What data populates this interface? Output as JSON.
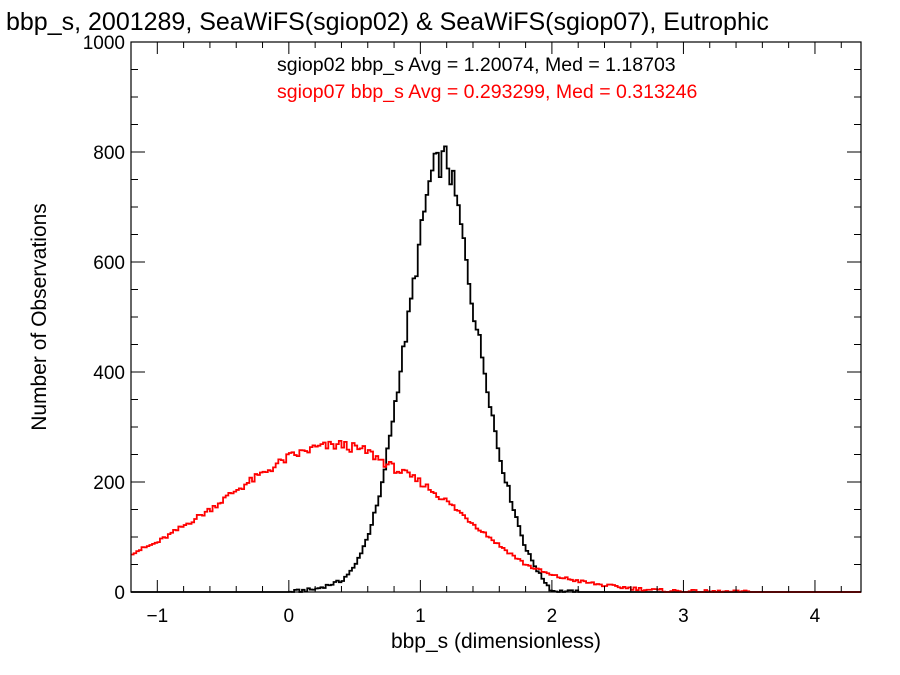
{
  "chart_data": {
    "type": "histogram",
    "title": "bbp_s, 2001289, SeaWiFS(sgiop02) & SeaWiFS(sgiop07), Eutrophic",
    "xlabel": "bbp_s (dimensionless)",
    "ylabel": "Number of Observations",
    "xlim": [
      -1.2,
      4.35
    ],
    "ylim": [
      0,
      1000
    ],
    "x_ticks": [
      "−1",
      "0",
      "1",
      "2",
      "3",
      "4"
    ],
    "y_ticks": [
      "0",
      "200",
      "400",
      "600",
      "800",
      "1000"
    ],
    "annotations": [
      {
        "text": "sgiop02 bbp_s Avg = 1.20074, Med = 1.18703",
        "color": "#000000"
      },
      {
        "text": "sgiop07 bbp_s Avg = 0.293299, Med = 0.313246",
        "color": "#ff0000"
      }
    ],
    "series": [
      {
        "label": "sgiop02",
        "color": "#000000",
        "x": [
          0.0,
          0.2,
          0.4,
          0.5,
          0.6,
          0.7,
          0.8,
          0.9,
          1.0,
          1.05,
          1.1,
          1.15,
          1.2,
          1.25,
          1.3,
          1.4,
          1.5,
          1.6,
          1.7,
          1.8,
          1.9,
          2.0,
          2.2
        ],
        "y": [
          0,
          5,
          20,
          45,
          100,
          180,
          330,
          480,
          640,
          720,
          770,
          780,
          790,
          740,
          680,
          520,
          390,
          250,
          160,
          80,
          35,
          2,
          0
        ]
      },
      {
        "label": "sgiop07",
        "color": "#ff0000",
        "x": [
          -1.2,
          -1.0,
          -0.8,
          -0.6,
          -0.4,
          -0.2,
          0.0,
          0.2,
          0.4,
          0.6,
          0.8,
          1.0,
          1.2,
          1.4,
          1.6,
          1.8,
          2.0,
          2.2,
          2.4,
          2.6,
          2.8,
          3.0,
          3.5,
          4.35
        ],
        "y": [
          70,
          90,
          120,
          150,
          185,
          215,
          245,
          262,
          268,
          255,
          225,
          200,
          165,
          125,
          85,
          50,
          30,
          20,
          12,
          7,
          3,
          1,
          0,
          0
        ]
      }
    ]
  }
}
